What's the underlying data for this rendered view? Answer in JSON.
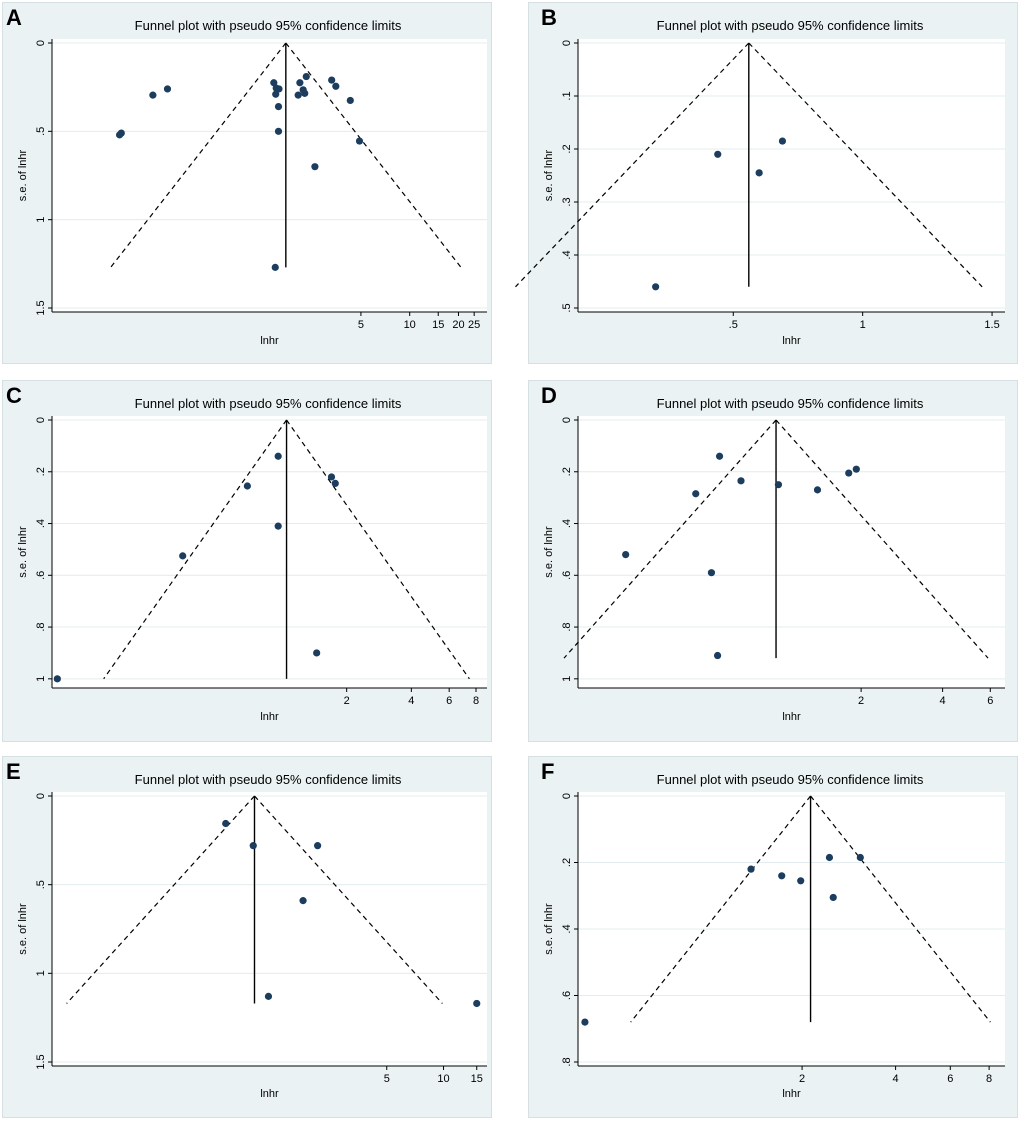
{
  "chart_data": [
    {
      "type": "scatter",
      "panel": "A",
      "title": "Funnel plot with pseudo 95% confidence limits",
      "xlabel": "lnhr",
      "ylabel": "s.e. of lnhr",
      "xscale": "log",
      "xlim": [
        0.062,
        30
      ],
      "ylim": [
        1.5,
        0
      ],
      "xticks": [
        {
          "v": 5,
          "label": "5"
        },
        {
          "v": 10,
          "label": "10"
        },
        {
          "v": 15,
          "label": "15"
        },
        {
          "v": 20,
          "label": "20"
        },
        {
          "v": 25,
          "label": "25"
        }
      ],
      "yticks": [
        {
          "v": 0,
          "label": "0"
        },
        {
          "v": 0.5,
          "label": ".5"
        },
        {
          "v": 1,
          "label": "1"
        },
        {
          "v": 1.5,
          "label": "1.5"
        }
      ],
      "center": 1.72,
      "cone_limit": 1.27,
      "points": [
        [
          0.162,
          0.52
        ],
        [
          0.166,
          0.51
        ],
        [
          0.26,
          0.295
        ],
        [
          0.32,
          0.26
        ],
        [
          1.45,
          0.225
        ],
        [
          1.49,
          0.29
        ],
        [
          1.5,
          0.255
        ],
        [
          1.55,
          0.36
        ],
        [
          1.55,
          0.5
        ],
        [
          1.56,
          0.26
        ],
        [
          1.48,
          1.27
        ],
        [
          2.05,
          0.295
        ],
        [
          2.1,
          0.225
        ],
        [
          2.2,
          0.265
        ],
        [
          2.25,
          0.285
        ],
        [
          2.3,
          0.19
        ],
        [
          2.6,
          0.7
        ],
        [
          3.3,
          0.21
        ],
        [
          3.5,
          0.245
        ],
        [
          4.3,
          0.325
        ],
        [
          4.9,
          0.555
        ]
      ]
    },
    {
      "type": "scatter",
      "panel": "B",
      "title": "Funnel plot with pseudo 95% confidence limits",
      "xlabel": "lnhr",
      "ylabel": "s.e. of lnhr",
      "xscale": "linear",
      "xlim": [
        -0.1,
        1.55
      ],
      "ylim": [
        0.5,
        0
      ],
      "xticks": [
        {
          "v": 0.5,
          "label": ".5"
        },
        {
          "v": 1,
          "label": "1"
        },
        {
          "v": 1.5,
          "label": "1.5"
        }
      ],
      "yticks": [
        {
          "v": 0,
          "label": "0"
        },
        {
          "v": 0.1,
          "label": ".1"
        },
        {
          "v": 0.2,
          "label": ".2"
        },
        {
          "v": 0.3,
          "label": ".3"
        },
        {
          "v": 0.4,
          "label": ".4"
        },
        {
          "v": 0.5,
          "label": ".5"
        }
      ],
      "center": 0.56,
      "cone_limit": 0.46,
      "points": [
        [
          0.2,
          0.46
        ],
        [
          0.44,
          0.21
        ],
        [
          0.6,
          0.245
        ],
        [
          0.69,
          0.185
        ]
      ]
    },
    {
      "type": "scatter",
      "panel": "C",
      "title": "Funnel plot with pseudo 95% confidence limits",
      "xlabel": "lnhr",
      "ylabel": "s.e. of lnhr",
      "xscale": "log",
      "xlim": [
        0.085,
        9
      ],
      "ylim": [
        1.02,
        0
      ],
      "xticks": [
        {
          "v": 2,
          "label": "2"
        },
        {
          "v": 4,
          "label": "4"
        },
        {
          "v": 6,
          "label": "6"
        },
        {
          "v": 8,
          "label": "8"
        }
      ],
      "yticks": [
        {
          "v": 0,
          "label": "0"
        },
        {
          "v": 0.2,
          "label": ".2"
        },
        {
          "v": 0.4,
          "label": ".4"
        },
        {
          "v": 0.6,
          "label": ".6"
        },
        {
          "v": 0.8,
          "label": ".8"
        },
        {
          "v": 1,
          "label": "1"
        }
      ],
      "center": 1.05,
      "cone_limit": 1.0,
      "points": [
        [
          0.09,
          1.0
        ],
        [
          0.345,
          0.525
        ],
        [
          0.69,
          0.255
        ],
        [
          0.96,
          0.14
        ],
        [
          0.96,
          0.41
        ],
        [
          1.45,
          0.9
        ],
        [
          1.7,
          0.22
        ],
        [
          1.77,
          0.245
        ]
      ]
    },
    {
      "type": "scatter",
      "panel": "D",
      "title": "Funnel plot with pseudo 95% confidence limits",
      "xlabel": "lnhr",
      "ylabel": "s.e. of lnhr",
      "xscale": "log",
      "xlim": [
        0.18,
        6.8
      ],
      "ylim": [
        1.02,
        0
      ],
      "xticks": [
        {
          "v": 2,
          "label": "2"
        },
        {
          "v": 4,
          "label": "4"
        },
        {
          "v": 6,
          "label": "6"
        }
      ],
      "yticks": [
        {
          "v": 0,
          "label": "0"
        },
        {
          "v": 0.2,
          "label": ".2"
        },
        {
          "v": 0.4,
          "label": ".4"
        },
        {
          "v": 0.6,
          "label": ".6"
        },
        {
          "v": 0.8,
          "label": ".8"
        },
        {
          "v": 1,
          "label": "1"
        }
      ],
      "center": 0.97,
      "cone_limit": 0.92,
      "points": [
        [
          0.27,
          0.52
        ],
        [
          0.49,
          0.285
        ],
        [
          0.56,
          0.59
        ],
        [
          0.59,
          0.91
        ],
        [
          0.6,
          0.14
        ],
        [
          0.72,
          0.235
        ],
        [
          0.99,
          0.25
        ],
        [
          1.38,
          0.27
        ],
        [
          1.8,
          0.205
        ],
        [
          1.92,
          0.19
        ]
      ]
    },
    {
      "type": "scatter",
      "panel": "E",
      "title": "Funnel plot with pseudo 95% confidence limits",
      "xlabel": "lnhr",
      "ylabel": "s.e. of lnhr",
      "xscale": "log",
      "xlim": [
        0.084,
        17
      ],
      "ylim": [
        1.5,
        0
      ],
      "xticks": [
        {
          "v": 5,
          "label": "5"
        },
        {
          "v": 10,
          "label": "10"
        },
        {
          "v": 15,
          "label": "15"
        }
      ],
      "yticks": [
        {
          "v": 0,
          "label": "0"
        },
        {
          "v": 0.5,
          "label": ".5"
        },
        {
          "v": 1,
          "label": "1"
        },
        {
          "v": 1.5,
          "label": "1.5"
        }
      ],
      "center": 0.995,
      "cone_limit": 1.17,
      "points": [
        [
          0.7,
          0.155
        ],
        [
          0.98,
          0.28
        ],
        [
          1.18,
          1.13
        ],
        [
          2.15,
          0.28
        ],
        [
          1.8,
          0.59
        ],
        [
          15,
          1.17
        ]
      ]
    },
    {
      "type": "scatter",
      "panel": "F",
      "title": "Funnel plot with pseudo 95% confidence limits",
      "xlabel": "lnhr",
      "ylabel": "s.e. of lnhr",
      "xscale": "log",
      "xlim": [
        0.38,
        9
      ],
      "ylim": [
        0.8,
        0
      ],
      "xticks": [
        {
          "v": 2,
          "label": "2"
        },
        {
          "v": 4,
          "label": "4"
        },
        {
          "v": 6,
          "label": "6"
        },
        {
          "v": 8,
          "label": "8"
        }
      ],
      "yticks": [
        {
          "v": 0,
          "label": "0"
        },
        {
          "v": 0.2,
          "label": ".2"
        },
        {
          "v": 0.4,
          "label": ".4"
        },
        {
          "v": 0.6,
          "label": ".6"
        },
        {
          "v": 0.8,
          "label": ".8"
        }
      ],
      "center": 2.13,
      "cone_limit": 0.68,
      "points": [
        [
          0.4,
          0.68
        ],
        [
          1.37,
          0.22
        ],
        [
          1.72,
          0.24
        ],
        [
          1.98,
          0.255
        ],
        [
          2.45,
          0.185
        ],
        [
          2.52,
          0.305
        ],
        [
          3.08,
          0.185
        ]
      ]
    }
  ]
}
